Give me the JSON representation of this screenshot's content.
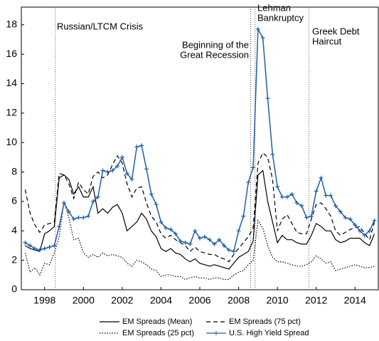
{
  "chart_data": {
    "type": "line",
    "x": [
      1997,
      1997.25,
      1997.5,
      1997.75,
      1998,
      1998.25,
      1998.5,
      1998.75,
      1999,
      1999.25,
      1999.5,
      1999.75,
      2000,
      2000.25,
      2000.5,
      2000.75,
      2001,
      2001.25,
      2001.5,
      2001.75,
      2002,
      2002.25,
      2002.5,
      2002.75,
      2003,
      2003.25,
      2003.5,
      2003.75,
      2004,
      2004.25,
      2004.5,
      2004.75,
      2005,
      2005.25,
      2005.5,
      2005.75,
      2006,
      2006.25,
      2006.5,
      2006.75,
      2007,
      2007.25,
      2007.5,
      2007.75,
      2008,
      2008.25,
      2008.5,
      2008.75,
      2009,
      2009.25,
      2009.5,
      2009.75,
      2010,
      2010.25,
      2010.5,
      2010.75,
      2011,
      2011.25,
      2011.5,
      2011.75,
      2012,
      2012.25,
      2012.5,
      2012.75,
      2013,
      2013.25,
      2013.5,
      2013.75,
      2014,
      2014.25,
      2014.5,
      2014.75,
      2015
    ],
    "series": [
      {
        "name": "EM Spreads (Mean)",
        "color": "#000000",
        "style": "solid",
        "values": [
          3.0,
          2.8,
          2.7,
          2.6,
          3.8,
          4.0,
          4.3,
          7.6,
          7.8,
          7.5,
          6.5,
          7.0,
          6.3,
          6.3,
          7.0,
          5.2,
          5.5,
          5.2,
          5.6,
          5.8,
          5.2,
          4.0,
          4.3,
          4.6,
          5.2,
          4.8,
          4.0,
          3.6,
          2.8,
          2.6,
          2.8,
          2.5,
          2.4,
          2.1,
          1.9,
          2.1,
          1.8,
          1.7,
          1.6,
          1.7,
          1.6,
          1.5,
          1.4,
          1.8,
          2.2,
          2.4,
          2.6,
          3.3,
          7.8,
          8.1,
          6.0,
          4.6,
          3.2,
          3.7,
          3.4,
          3.4,
          3.2,
          3.1,
          3.1,
          3.7,
          4.5,
          4.3,
          4.0,
          4.0,
          3.4,
          3.2,
          3.3,
          3.5,
          3.5,
          3.5,
          3.2,
          3.0,
          3.8
        ]
      },
      {
        "name": "EM Spreads (75 pct)",
        "color": "#000000",
        "style": "dashed",
        "values": [
          6.8,
          5.2,
          4.4,
          3.9,
          4.4,
          4.5,
          4.6,
          7.9,
          7.8,
          7.2,
          6.2,
          7.3,
          6.8,
          6.5,
          7.7,
          8.0,
          7.6,
          7.8,
          8.5,
          9.1,
          8.6,
          7.2,
          6.3,
          6.9,
          7.0,
          5.9,
          5.0,
          4.6,
          3.8,
          3.5,
          3.7,
          3.4,
          3.2,
          3.0,
          2.6,
          2.9,
          2.6,
          2.5,
          2.4,
          2.4,
          2.2,
          2.1,
          1.9,
          2.4,
          2.8,
          3.2,
          3.6,
          4.2,
          8.6,
          9.3,
          9.0,
          7.5,
          4.0,
          4.8,
          5.1,
          4.5,
          3.9,
          3.8,
          3.8,
          4.8,
          5.8,
          5.9,
          5.5,
          5.0,
          4.0,
          3.7,
          3.9,
          4.1,
          4.2,
          4.3,
          3.8,
          3.4,
          4.6
        ]
      },
      {
        "name": "EM Spreads (25 pct)",
        "color": "#000000",
        "style": "dotted",
        "values": [
          2.5,
          1.2,
          1.5,
          1.0,
          1.8,
          1.7,
          2.5,
          3.6,
          6.0,
          4.9,
          3.4,
          3.5,
          2.5,
          2.2,
          2.4,
          2.2,
          2.5,
          2.3,
          2.4,
          2.3,
          2.2,
          1.8,
          1.6,
          2.0,
          1.9,
          1.7,
          1.4,
          1.3,
          0.9,
          1.0,
          1.0,
          0.9,
          0.9,
          0.7,
          0.8,
          0.9,
          0.8,
          0.8,
          0.7,
          0.8,
          0.8,
          0.7,
          0.7,
          1.0,
          1.2,
          1.3,
          1.7,
          2.0,
          4.7,
          4.2,
          3.0,
          2.2,
          1.9,
          1.9,
          1.8,
          1.7,
          1.6,
          1.6,
          1.7,
          1.9,
          2.3,
          2.1,
          1.8,
          1.9,
          1.3,
          1.4,
          1.5,
          1.6,
          1.7,
          1.6,
          1.5,
          1.5,
          1.6
        ]
      },
      {
        "name": "U.S. High Yield Spread",
        "color": "#1f5fa8",
        "style": "solid",
        "marker": "+",
        "values": [
          3.2,
          3.0,
          2.8,
          2.7,
          2.8,
          2.9,
          3.0,
          4.3,
          5.9,
          5.3,
          4.8,
          4.9,
          4.9,
          5.0,
          6.0,
          6.3,
          8.1,
          8.0,
          8.1,
          8.4,
          9.0,
          7.9,
          7.5,
          9.7,
          9.8,
          8.2,
          6.5,
          5.8,
          4.6,
          4.2,
          4.1,
          3.8,
          3.3,
          3.2,
          3.1,
          4.0,
          3.5,
          3.6,
          3.4,
          3.1,
          3.4,
          3.0,
          2.7,
          2.6,
          4.0,
          5.0,
          7.3,
          8.3,
          17.7,
          17.1,
          13.0,
          9.2,
          7.0,
          6.3,
          6.3,
          6.5,
          5.9,
          5.7,
          4.9,
          5.0,
          6.7,
          7.6,
          6.4,
          6.4,
          5.7,
          5.3,
          4.9,
          4.8,
          4.4,
          4.0,
          3.7,
          4.0,
          4.7
        ]
      }
    ],
    "xlim": [
      1996.8,
      2015.2
    ],
    "ylim": [
      0,
      19.2
    ],
    "xticks": [
      1998,
      2000,
      2002,
      2004,
      2006,
      2008,
      2010,
      2012,
      2014
    ],
    "yticks": [
      0,
      2,
      4,
      6,
      8,
      10,
      12,
      14,
      16,
      18
    ],
    "vlines": [
      1998.55,
      2008.62,
      2008.85,
      2011.62
    ],
    "annotations": [
      {
        "lines": [
          "Russian/LTCM Crisis"
        ]
      },
      {
        "lines": [
          "Beginning of the",
          "Great Recession"
        ]
      },
      {
        "lines": [
          "Lehman",
          "Bankruptcy"
        ]
      },
      {
        "lines": [
          "Greek Debt",
          "Haircut"
        ]
      }
    ],
    "legend": "bottom"
  }
}
